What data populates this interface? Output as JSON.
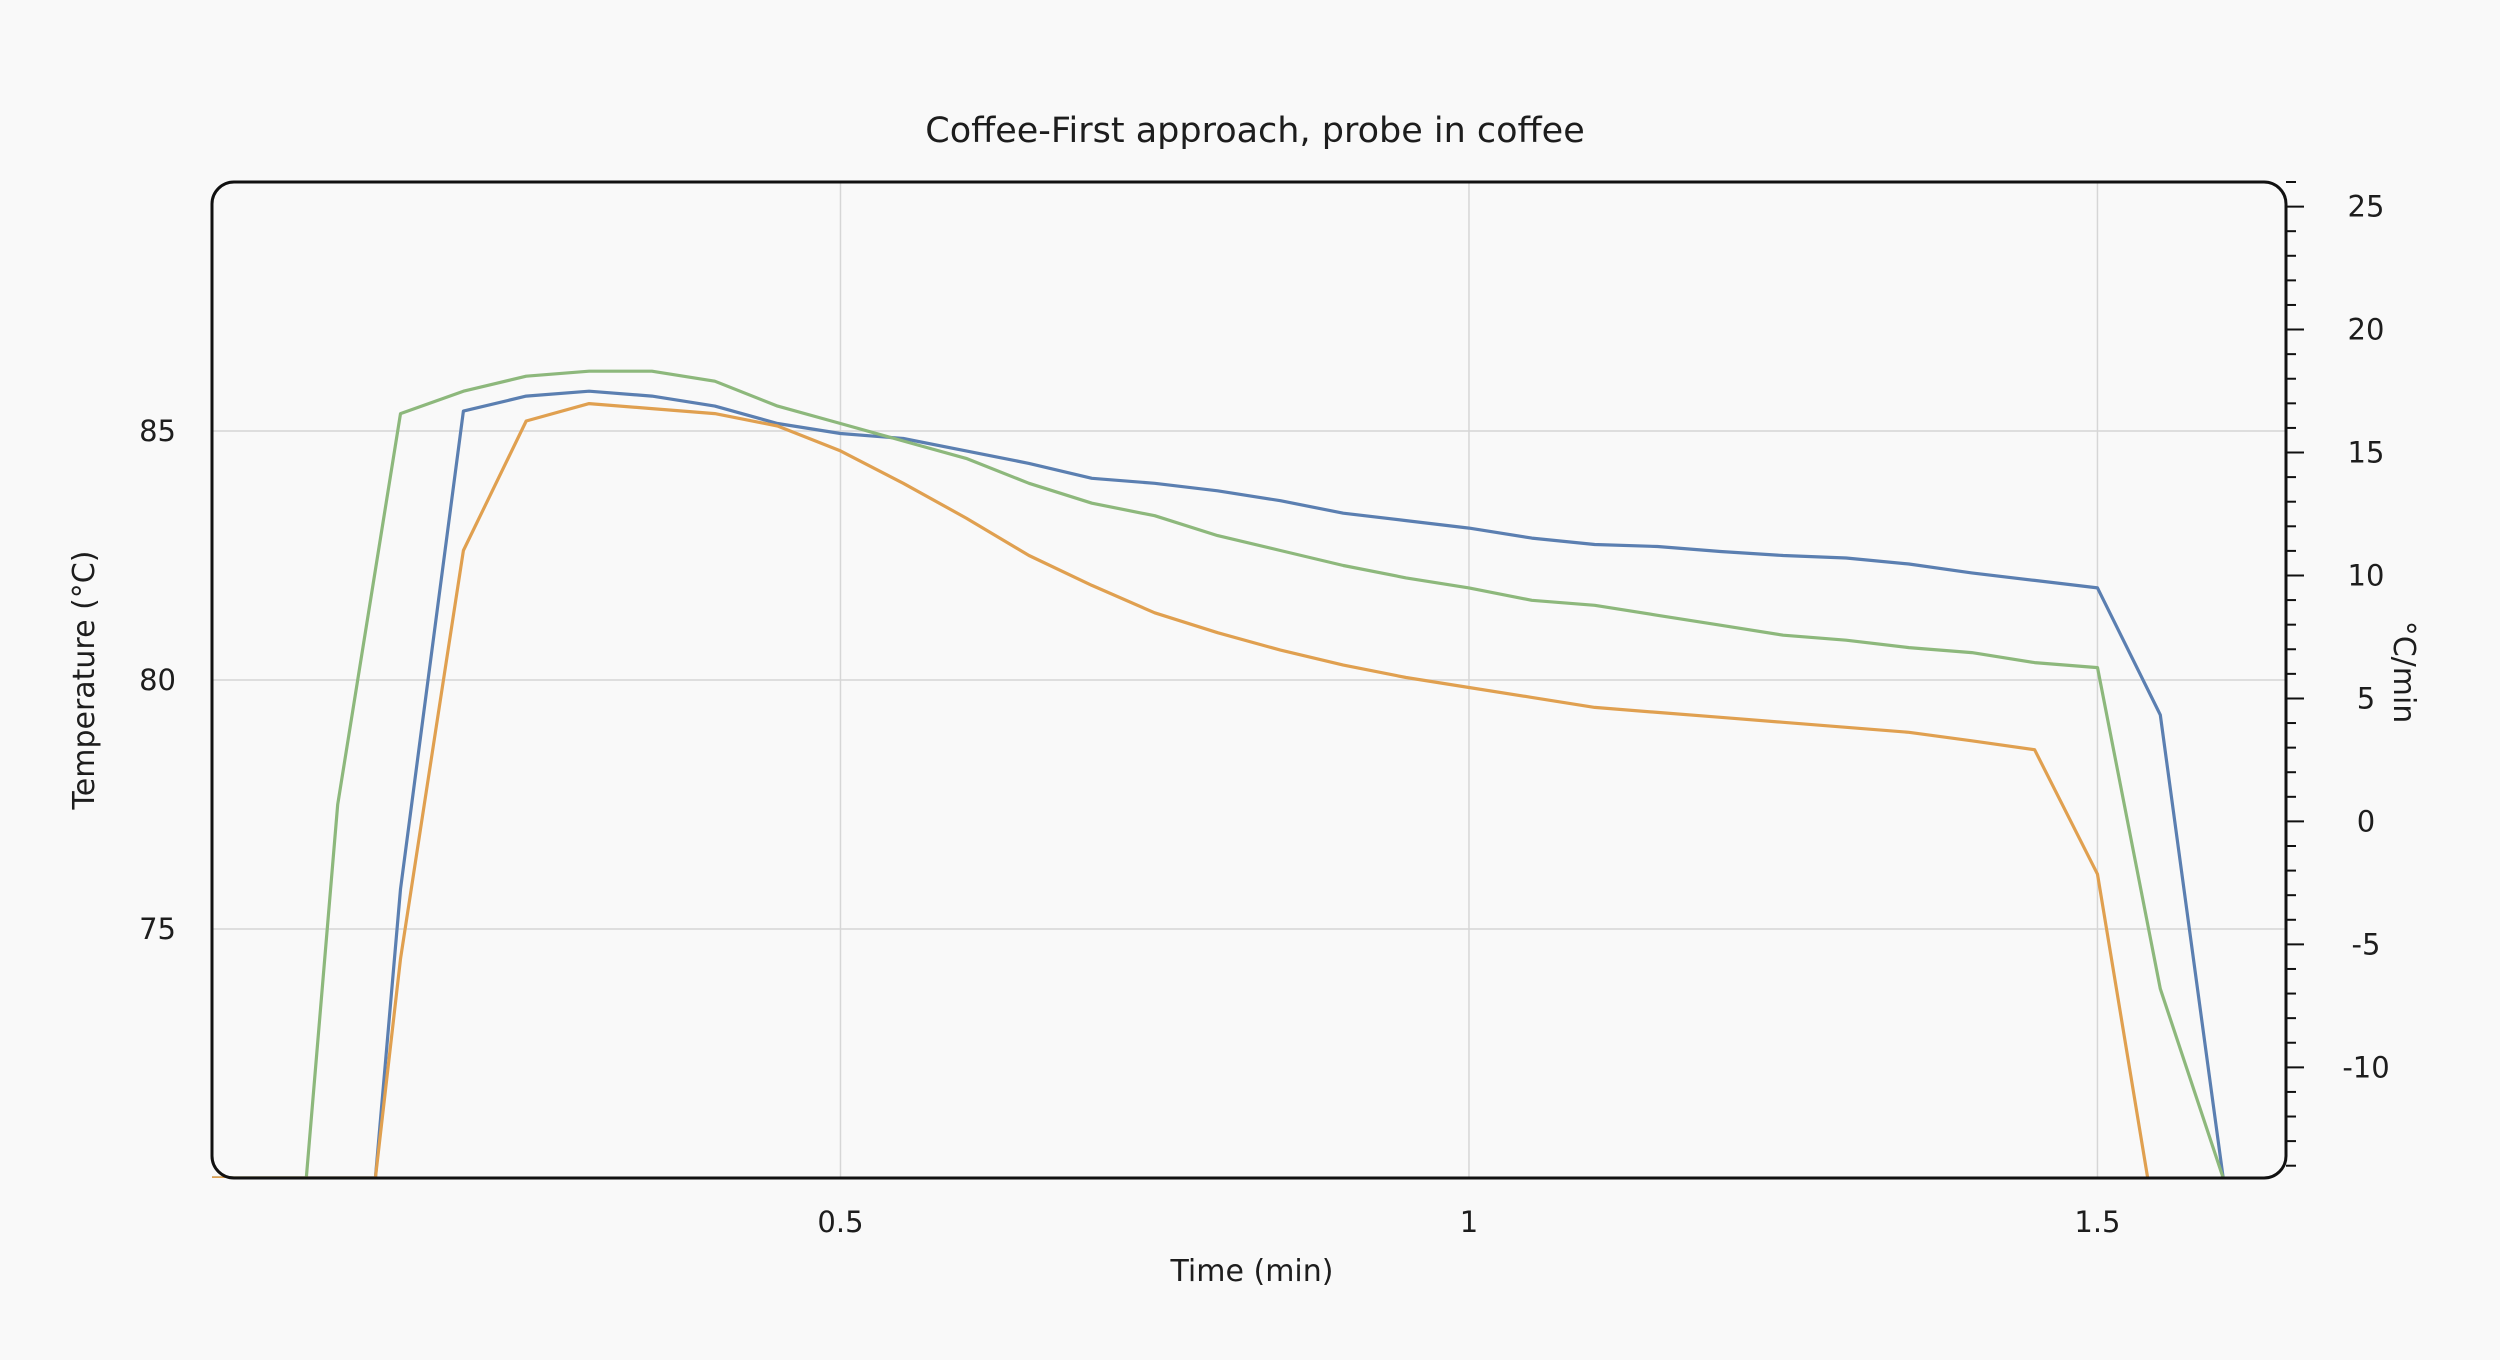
{
  "chart_data": {
    "type": "line",
    "title": "Coffee-First approach, probe in coffee",
    "xlabel": "Time (min)",
    "ylabel": "Temperature (°C)",
    "y2label": "°C/min",
    "xlim": [
      0,
      1.65
    ],
    "ylim": [
      70,
      90
    ],
    "y2lim": [
      -14.5,
      26
    ],
    "x_ticks": [
      0.5,
      1,
      1.5
    ],
    "x_tick_labels": [
      "0.5",
      "1",
      "1.5"
    ],
    "y_ticks": [
      75,
      80,
      85
    ],
    "y_tick_labels": [
      "75",
      "80",
      "85"
    ],
    "y2_ticks": [
      -10,
      -5,
      0,
      5,
      10,
      15,
      20,
      25
    ],
    "y2_tick_labels": [
      "-10",
      "-5",
      "0",
      "5",
      "10",
      "15",
      "20",
      "25"
    ],
    "y2_minor_step": 1,
    "grid": true,
    "legend": "none",
    "series": [
      {
        "color": "#5b7fb1",
        "x": [
          0.0,
          0.13,
          0.15,
          0.2,
          0.25,
          0.3,
          0.35,
          0.4,
          0.45,
          0.5,
          0.55,
          0.6,
          0.65,
          0.7,
          0.75,
          0.8,
          0.85,
          0.9,
          0.95,
          1.0,
          1.05,
          1.1,
          1.15,
          1.2,
          1.25,
          1.3,
          1.35,
          1.4,
          1.45,
          1.5,
          1.55,
          1.6
        ],
        "y": [
          70.0,
          70.0,
          75.8,
          85.4,
          85.7,
          85.8,
          85.7,
          85.5,
          85.15,
          84.95,
          84.85,
          84.6,
          84.35,
          84.05,
          83.95,
          83.8,
          83.6,
          83.35,
          83.2,
          83.05,
          82.85,
          82.72,
          82.68,
          82.58,
          82.5,
          82.45,
          82.33,
          82.15,
          82.0,
          81.85,
          79.3,
          70.0
        ]
      },
      {
        "color": "#8db87c",
        "x": [
          0.0,
          0.075,
          0.1,
          0.15,
          0.2,
          0.25,
          0.3,
          0.35,
          0.4,
          0.45,
          0.5,
          0.55,
          0.6,
          0.65,
          0.7,
          0.75,
          0.8,
          0.85,
          0.9,
          0.95,
          1.0,
          1.05,
          1.1,
          1.15,
          1.2,
          1.25,
          1.3,
          1.35,
          1.4,
          1.45,
          1.5,
          1.55,
          1.6
        ],
        "y": [
          70.0,
          70.0,
          77.5,
          85.35,
          85.8,
          86.1,
          86.2,
          86.2,
          86.0,
          85.5,
          85.15,
          84.8,
          84.45,
          83.95,
          83.55,
          83.3,
          82.9,
          82.6,
          82.3,
          82.05,
          81.85,
          81.6,
          81.5,
          81.3,
          81.1,
          80.9,
          80.8,
          80.65,
          80.55,
          80.35,
          80.25,
          73.8,
          70.0
        ]
      },
      {
        "color": "#e0a050",
        "x": [
          0.0,
          0.13,
          0.15,
          0.2,
          0.25,
          0.3,
          0.35,
          0.4,
          0.45,
          0.5,
          0.55,
          0.6,
          0.65,
          0.7,
          0.75,
          0.8,
          0.85,
          0.9,
          0.95,
          1.0,
          1.05,
          1.1,
          1.15,
          1.2,
          1.25,
          1.3,
          1.35,
          1.4,
          1.45,
          1.5,
          1.54
        ],
        "y": [
          70.0,
          70.0,
          74.4,
          82.6,
          85.2,
          85.55,
          85.45,
          85.35,
          85.1,
          84.6,
          83.95,
          83.25,
          82.5,
          81.9,
          81.35,
          80.95,
          80.6,
          80.3,
          80.05,
          79.85,
          79.65,
          79.45,
          79.35,
          79.25,
          79.15,
          79.05,
          78.95,
          78.78,
          78.6,
          76.1,
          70.0
        ]
      }
    ]
  }
}
